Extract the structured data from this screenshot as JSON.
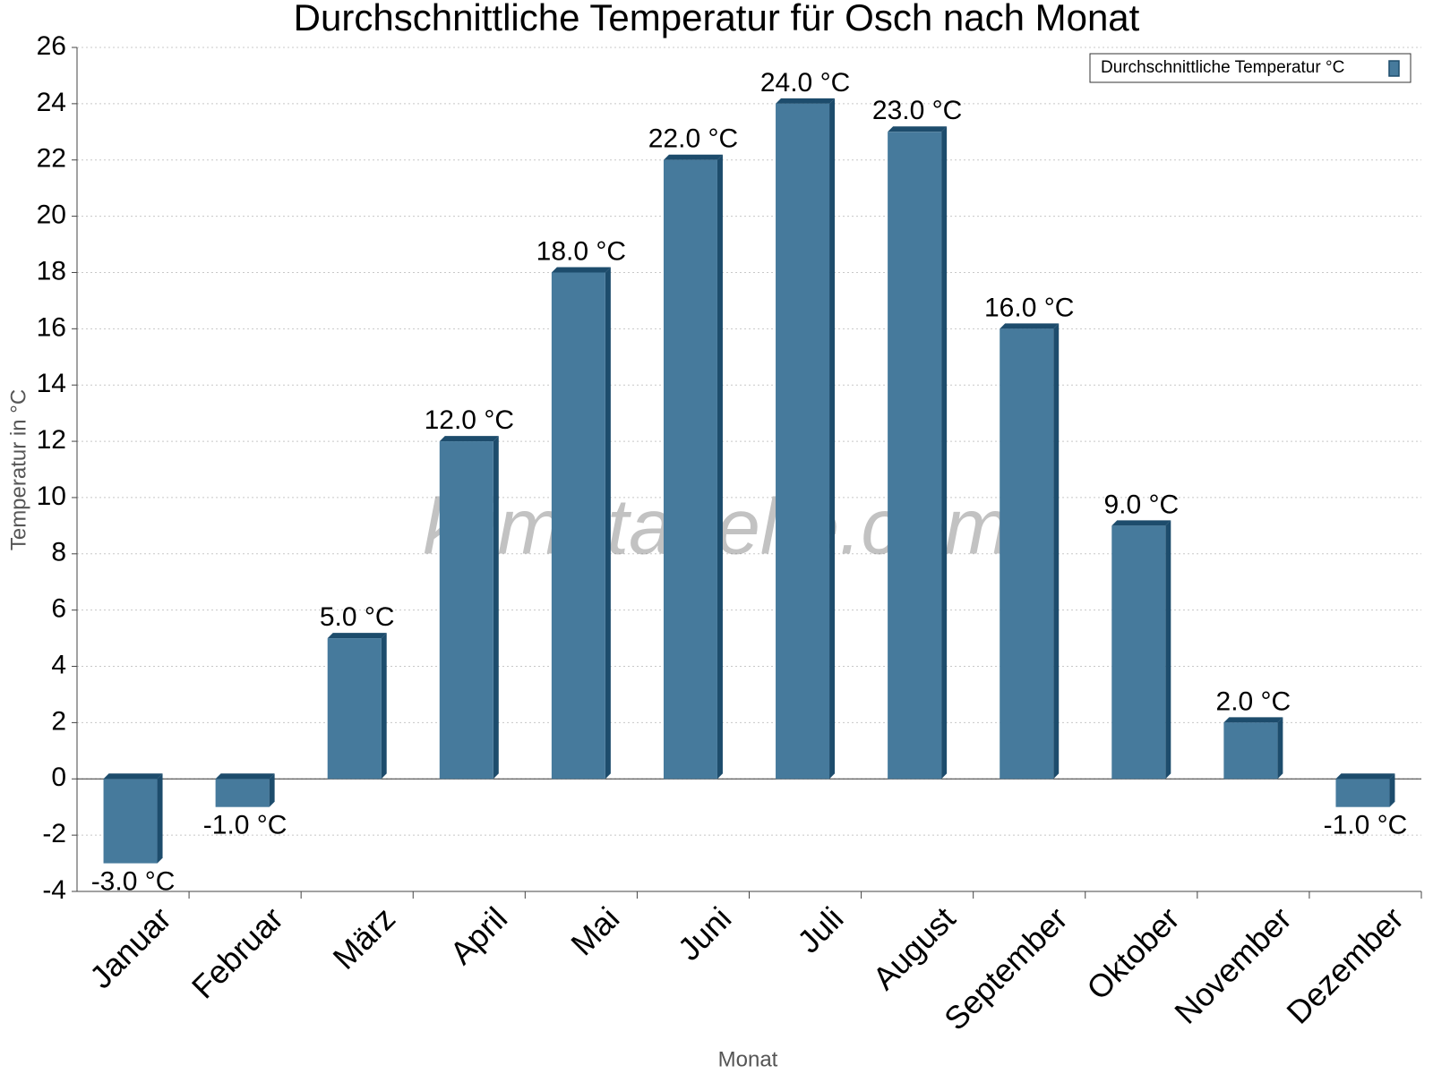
{
  "chart_data": {
    "type": "bar",
    "title": "Durchschnittliche Temperatur für Osch nach Monat",
    "x_label": "Monat",
    "y_label": "Temperatur in °C",
    "watermark": "klimatabelle.com",
    "categories": [
      "Januar",
      "Februar",
      "März",
      "April",
      "Mai",
      "Juni",
      "Juli",
      "August",
      "September",
      "Oktober",
      "November",
      "Dezember"
    ],
    "series": [
      {
        "name": "Durchschnittliche Temperatur °C",
        "color": "#467a9c",
        "values": [
          -3,
          -1,
          5,
          12,
          18,
          22,
          24,
          23,
          16,
          9,
          2,
          -1
        ],
        "value_labels": [
          "-3.0 °C",
          "-1.0 °C",
          "5.0 °C",
          "12.0 °C",
          "18.0 °C",
          "22.0 °C",
          "24.0 °C",
          "23.0 °C",
          "16.0 °C",
          "9.0 °C",
          "2.0 °C",
          "-1.0 °C"
        ]
      }
    ],
    "ylim": [
      -4,
      26
    ],
    "yticks": [
      -4,
      -2,
      0,
      2,
      4,
      6,
      8,
      10,
      12,
      14,
      16,
      18,
      20,
      22,
      24,
      26
    ],
    "grid": true,
    "legend_position": "top-right"
  }
}
